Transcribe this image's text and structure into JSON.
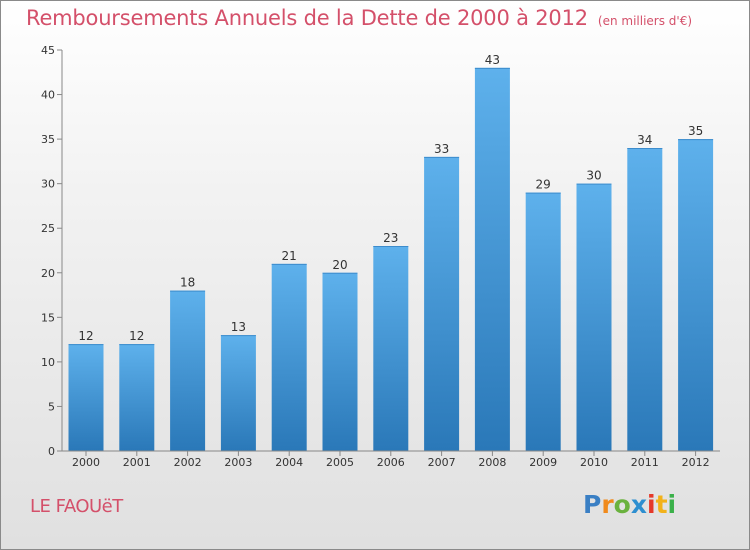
{
  "title": "Remboursements Annuels de la Dette de 2000 à 2012",
  "unit": "(en milliers d'€)",
  "commune": "LE FAOUëT",
  "logo": {
    "letters": [
      "P",
      "r",
      "o",
      "x",
      "i",
      "t",
      "i"
    ],
    "colors": [
      "#3a7fc4",
      "#f08a1c",
      "#6ab23e",
      "#2e8fd0",
      "#e5392a",
      "#f2b21a",
      "#3bb14a"
    ]
  },
  "colors": {
    "bar": "#4a9fe0",
    "title": "#d4506a",
    "axis": "#333333"
  },
  "chart_data": {
    "type": "bar",
    "categories": [
      "2000",
      "2001",
      "2002",
      "2003",
      "2004",
      "2005",
      "2006",
      "2007",
      "2008",
      "2009",
      "2010",
      "2011",
      "2012"
    ],
    "values": [
      12,
      12,
      18,
      13,
      21,
      20,
      23,
      33,
      43,
      29,
      30,
      34,
      35
    ],
    "ylim": [
      0,
      45
    ],
    "yticks": [
      0,
      5,
      10,
      15,
      20,
      25,
      30,
      35,
      40,
      45
    ],
    "grid": false,
    "data_labels": true
  }
}
